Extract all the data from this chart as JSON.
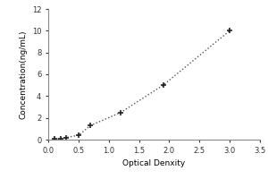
{
  "x_data": [
    0.1,
    0.2,
    0.3,
    0.5,
    0.7,
    1.2,
    1.9,
    3.0
  ],
  "y_data": [
    0.05,
    0.1,
    0.2,
    0.4,
    1.3,
    2.5,
    5.0,
    10.0
  ],
  "xlabel": "Optical Denxity",
  "ylabel": "Concentration(ng/mL)",
  "xlim": [
    0,
    3.5
  ],
  "ylim": [
    0,
    12
  ],
  "xticks": [
    0,
    0.5,
    1.0,
    1.5,
    2.0,
    2.5,
    3.0,
    3.5
  ],
  "yticks": [
    0,
    2,
    4,
    6,
    8,
    10,
    12
  ],
  "marker": "+",
  "marker_color": "#222222",
  "line_color": "#555555",
  "line_style": "dotted",
  "marker_size": 5,
  "marker_edge_width": 1.2,
  "line_width": 1.0,
  "bg_color": "#ffffff",
  "label_fontsize": 6.5,
  "tick_fontsize": 6
}
